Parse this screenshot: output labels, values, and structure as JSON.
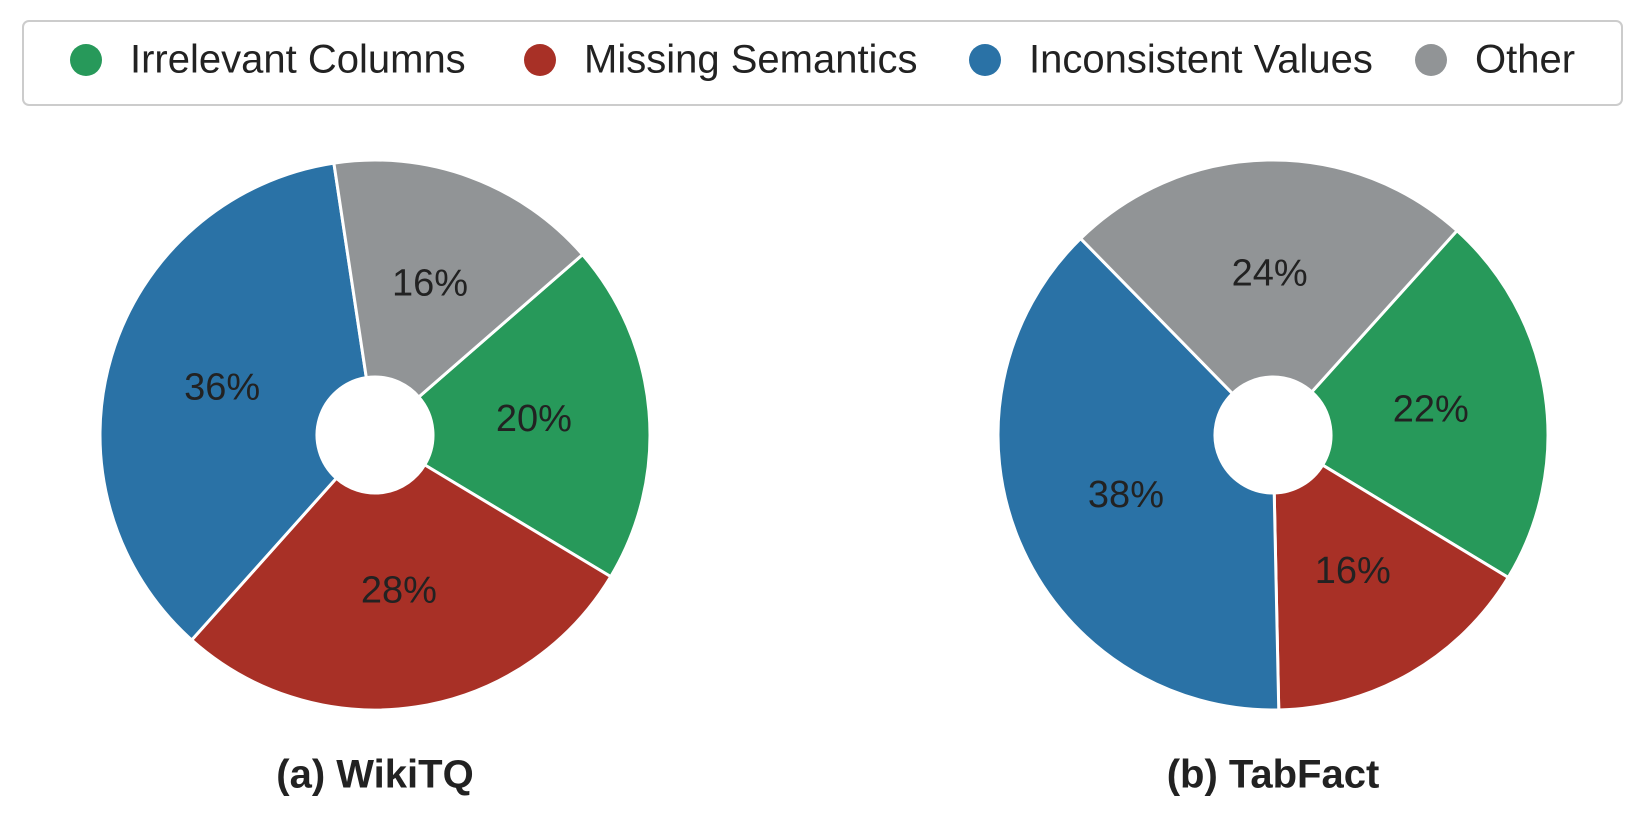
{
  "chart_data": [
    {
      "type": "pie",
      "title": "(a) WikiTQ",
      "categories": [
        "Irrelevant Columns",
        "Missing Semantics",
        "Inconsistent Values",
        "Other"
      ],
      "values": [
        20,
        28,
        36,
        16
      ],
      "value_labels": [
        "20%",
        "28%",
        "36%",
        "16%"
      ],
      "colors": [
        "#27995a",
        "#a83026",
        "#2a72a6",
        "#919496"
      ]
    },
    {
      "type": "pie",
      "title": "(b) TabFact",
      "categories": [
        "Irrelevant Columns",
        "Missing Semantics",
        "Inconsistent Values",
        "Other"
      ],
      "values": [
        22,
        16,
        38,
        24
      ],
      "value_labels": [
        "22%",
        "16%",
        "38%",
        "24%"
      ],
      "colors": [
        "#27995a",
        "#a83026",
        "#2a72a6",
        "#919496"
      ]
    }
  ]
}
